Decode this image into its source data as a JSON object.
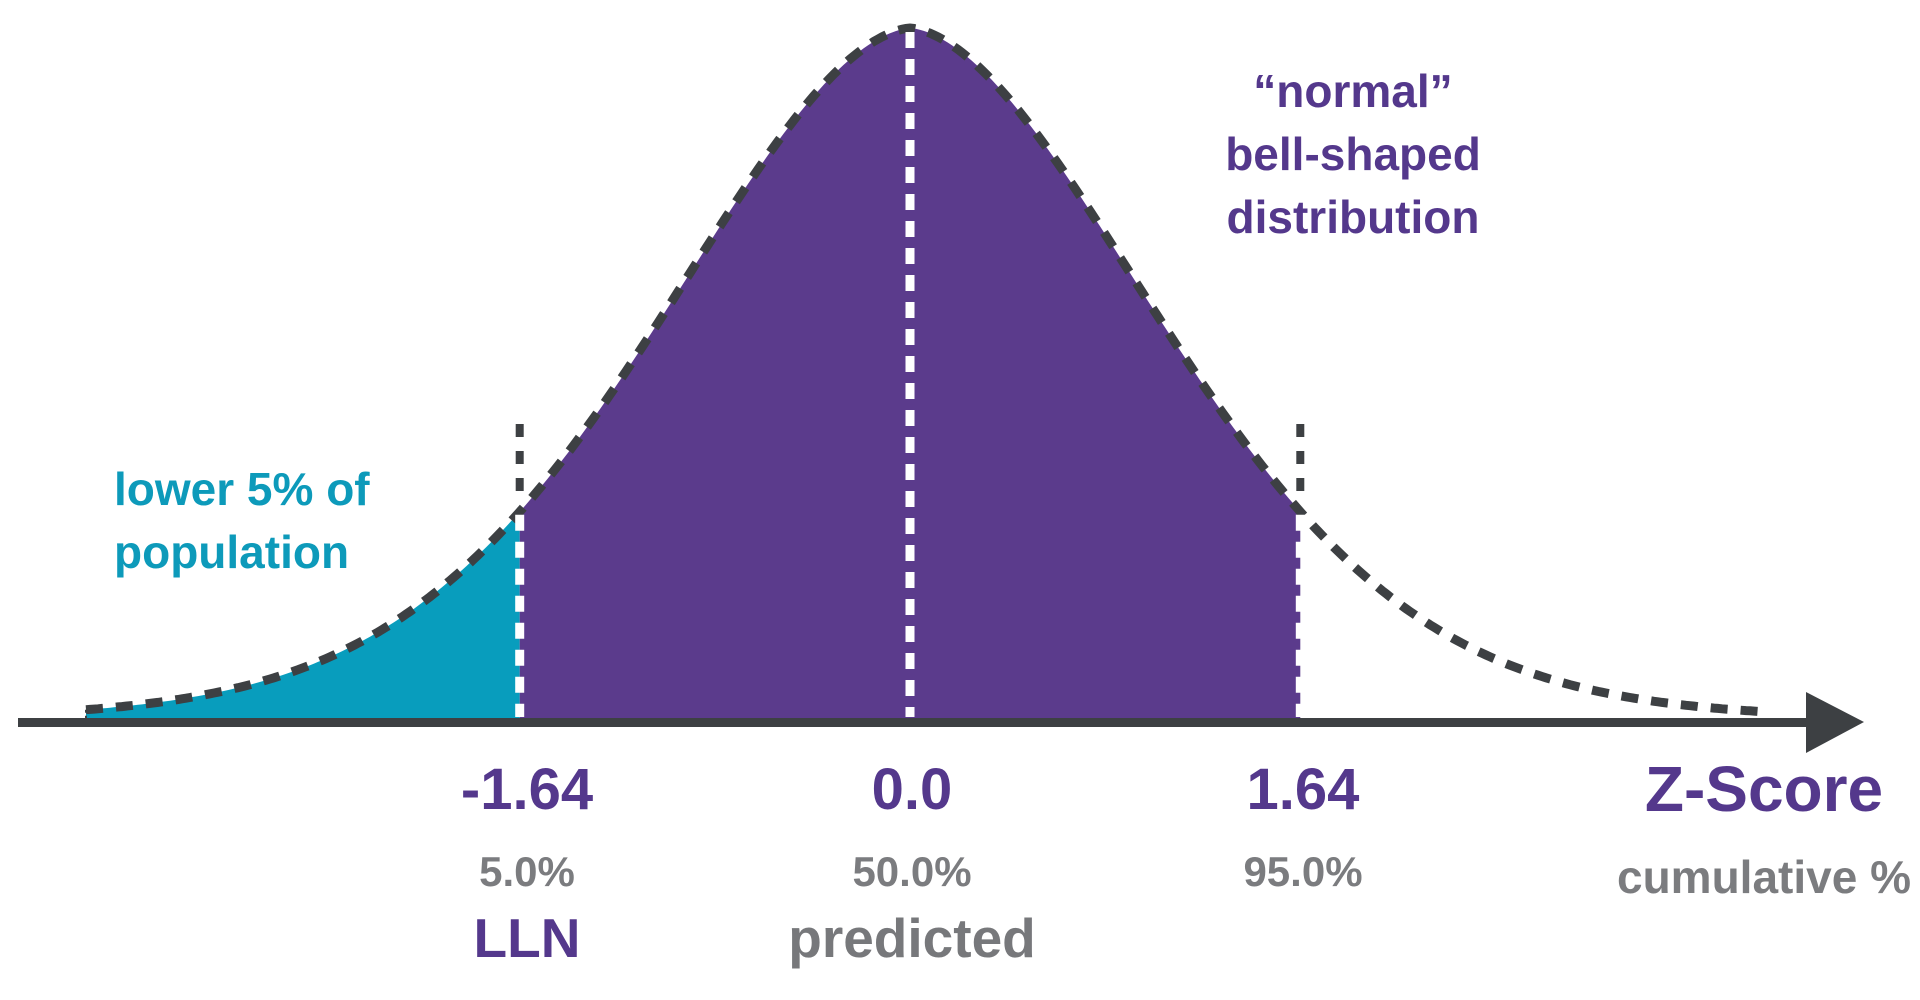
{
  "chart_data": {
    "type": "area",
    "title": "",
    "xlabel": "Z-Score",
    "sub_xlabel": "cumulative %",
    "grid": false,
    "legend": "none",
    "distribution": "standard normal bell curve",
    "x_range_z": [
      -3.5,
      3.6
    ],
    "curve_peak_z": 0,
    "shaded_regions": [
      {
        "name": "lower-tail",
        "from_z": -3.47,
        "to_z": -1.64,
        "area_fraction": 0.05,
        "meaning": "lower 5% of population"
      },
      {
        "name": "central-body",
        "from_z": -1.64,
        "to_z": 1.64,
        "meaning": "“normal” bell-shaped distribution"
      },
      {
        "name": "upper-tail-outline-only",
        "from_z": 1.64,
        "to_z": 3.6,
        "filled": false
      }
    ],
    "ticks": [
      {
        "z": "-1.64",
        "z_value": -1.64,
        "cumulative": "5.0%",
        "cumulative_value": 5.0,
        "sublabel": "LLN"
      },
      {
        "z": "0.0",
        "z_value": 0.0,
        "cumulative": "50.0%",
        "cumulative_value": 50.0,
        "sublabel": "predicted"
      },
      {
        "z": "1.64",
        "z_value": 1.64,
        "cumulative": "95.0%",
        "cumulative_value": 95.0,
        "sublabel": ""
      }
    ],
    "axis_label": {
      "line1": "Z-Score",
      "line2": "cumulative %"
    }
  },
  "annotations": {
    "left": {
      "lines": [
        "lower 5% of",
        "population"
      ]
    },
    "right": {
      "lines": [
        "“normal”",
        "bell-shaped",
        "distribution"
      ]
    }
  },
  "colors": {
    "purple_fill": "#5b3b8c",
    "purple_text": "#54388c",
    "teal_fill": "#089dbd",
    "teal_text": "#0d9aba",
    "dark_line": "#3d4043",
    "gray_text": "#7b7c7f",
    "white_dash": "#ffffff"
  }
}
